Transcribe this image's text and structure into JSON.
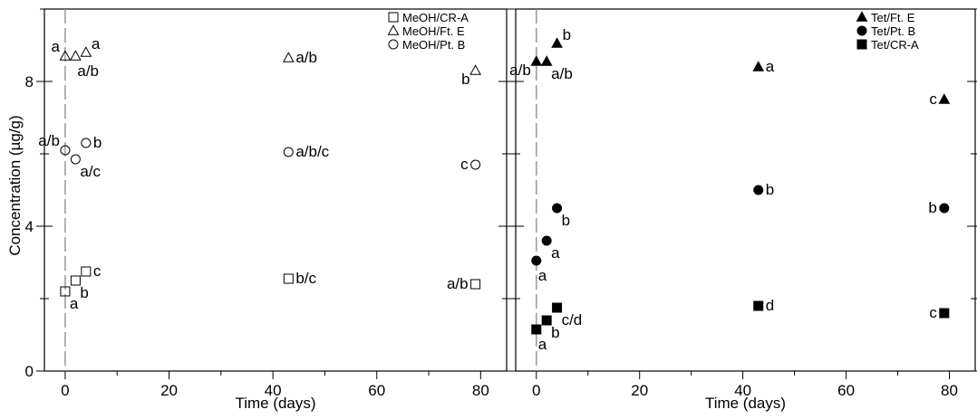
{
  "figure": {
    "ylabel": "Concentration (µg/g)"
  },
  "chart_data": [
    {
      "type": "scatter",
      "xlabel": "Time (days)",
      "ylabel": "Concentration (µg/g)",
      "xlim": [
        -4,
        85
      ],
      "ylim": [
        0,
        10
      ],
      "xticks": [
        0,
        20,
        40,
        60,
        80
      ],
      "yticks": [
        0,
        4,
        8
      ],
      "reference_line_x": 0,
      "legend_position": "top-right",
      "series": [
        {
          "name": "MeOH/CR-A",
          "marker": "square-open",
          "points": [
            {
              "x": 0,
              "y": 2.2,
              "label": "a",
              "lpos": "below-right"
            },
            {
              "x": 2,
              "y": 2.5,
              "label": "b",
              "lpos": "below-right"
            },
            {
              "x": 4,
              "y": 2.75,
              "label": "c",
              "lpos": "right"
            },
            {
              "x": 43,
              "y": 2.55,
              "label": "b/c",
              "lpos": "right"
            },
            {
              "x": 79,
              "y": 2.4,
              "label": "a/b",
              "lpos": "left"
            }
          ]
        },
        {
          "name": "MeOH/Ft. E",
          "marker": "triangle-open",
          "points": [
            {
              "x": 0,
              "y": 8.7,
              "label": "a",
              "lpos": "above-left"
            },
            {
              "x": 2,
              "y": 8.7,
              "label": "a/b",
              "lpos": "below"
            },
            {
              "x": 4,
              "y": 8.8,
              "label": "a",
              "lpos": "above-right"
            },
            {
              "x": 43,
              "y": 8.65,
              "label": "a/b",
              "lpos": "right"
            },
            {
              "x": 79,
              "y": 8.3,
              "label": "b",
              "lpos": "below-left"
            }
          ]
        },
        {
          "name": "MeOH/Pt. B",
          "marker": "circle-open",
          "points": [
            {
              "x": 0,
              "y": 6.1,
              "label": "a/b",
              "lpos": "above-left"
            },
            {
              "x": 2,
              "y": 5.85,
              "label": "a/c",
              "lpos": "below-right"
            },
            {
              "x": 4,
              "y": 6.3,
              "label": "b",
              "lpos": "right"
            },
            {
              "x": 43,
              "y": 6.05,
              "label": "a/b/c",
              "lpos": "right"
            },
            {
              "x": 79,
              "y": 5.7,
              "label": "c",
              "lpos": "left"
            }
          ]
        }
      ]
    },
    {
      "type": "scatter",
      "xlabel": "Time (days)",
      "ylabel": "",
      "xlim": [
        -4,
        85
      ],
      "ylim": [
        0,
        10
      ],
      "xticks": [
        0,
        20,
        40,
        60,
        80
      ],
      "yticks": [
        0,
        4,
        8
      ],
      "reference_line_x": 0,
      "legend_position": "top-right",
      "series": [
        {
          "name": "Tet/Ft. E",
          "marker": "triangle-filled",
          "points": [
            {
              "x": 0,
              "y": 8.55,
              "label": "a/b",
              "lpos": "below-left"
            },
            {
              "x": 2,
              "y": 8.55,
              "label": "a/b",
              "lpos": "below-right"
            },
            {
              "x": 4,
              "y": 9.05,
              "label": "b",
              "lpos": "above-right"
            },
            {
              "x": 43,
              "y": 8.4,
              "label": "a",
              "lpos": "right"
            },
            {
              "x": 79,
              "y": 7.5,
              "label": "c",
              "lpos": "left"
            }
          ]
        },
        {
          "name": "Tet/Pt. B",
          "marker": "circle-filled",
          "points": [
            {
              "x": 0,
              "y": 3.05,
              "label": "a",
              "lpos": "below"
            },
            {
              "x": 2,
              "y": 3.6,
              "label": "a",
              "lpos": "below-right"
            },
            {
              "x": 4,
              "y": 4.5,
              "label": "b",
              "lpos": "below-right"
            },
            {
              "x": 43,
              "y": 5.0,
              "label": "b",
              "lpos": "right"
            },
            {
              "x": 79,
              "y": 4.5,
              "label": "b",
              "lpos": "left"
            }
          ]
        },
        {
          "name": "Tet/CR-A",
          "marker": "square-filled",
          "points": [
            {
              "x": 0,
              "y": 1.15,
              "label": "a",
              "lpos": "below"
            },
            {
              "x": 2,
              "y": 1.4,
              "label": "b",
              "lpos": "below-right"
            },
            {
              "x": 4,
              "y": 1.75,
              "label": "c/d",
              "lpos": "below-right"
            },
            {
              "x": 43,
              "y": 1.8,
              "label": "d",
              "lpos": "right"
            },
            {
              "x": 79,
              "y": 1.6,
              "label": "c",
              "lpos": "left"
            }
          ]
        }
      ]
    }
  ]
}
